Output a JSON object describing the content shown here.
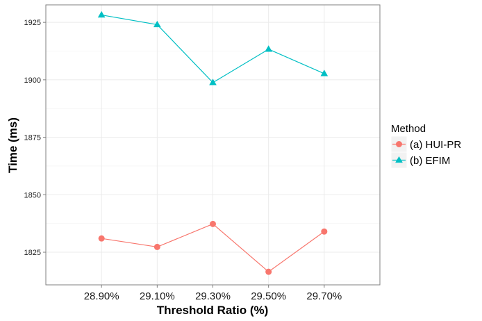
{
  "chart_data": {
    "type": "line",
    "xlabel": "Threshold Ratio (%)",
    "ylabel": "Time (ms)",
    "categories": [
      "28.90%",
      "29.10%",
      "29.30%",
      "29.50%",
      "29.70%"
    ],
    "ylim": [
      1810.8,
      1932.6
    ],
    "yticks": [
      1825,
      1850,
      1875,
      1900,
      1925
    ],
    "grid": true,
    "legend": {
      "title": "Method",
      "placement": "right"
    },
    "series": [
      {
        "name": "(a) HUI-PR",
        "color": "#F8766D",
        "marker": "circle",
        "values": [
          1831,
          1827.3,
          1837.3,
          1816.5,
          1834
        ]
      },
      {
        "name": "(b) EFIM",
        "color": "#00BFC4",
        "marker": "triangle",
        "values": [
          1928.2,
          1924,
          1898.8,
          1913.3,
          1902.7
        ]
      }
    ]
  }
}
